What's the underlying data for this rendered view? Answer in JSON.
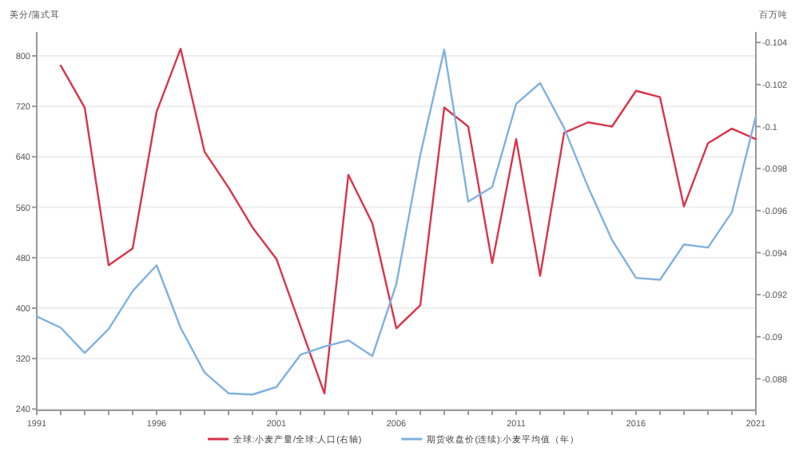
{
  "chart_data": {
    "type": "line",
    "ylabel": "美分/蒲式耳",
    "y2label": "百万吨",
    "legend": "bottom",
    "grid": "y",
    "xlim": [
      1991,
      2021
    ],
    "xticks": [
      1991,
      {
        "value": 1992,
        "label": null
      },
      {
        "value": 1993,
        "label": null
      },
      {
        "value": 1994,
        "label": null
      },
      {
        "value": 1995,
        "label": null
      },
      1996,
      {
        "value": 1997,
        "label": null
      },
      {
        "value": 1998,
        "label": null
      },
      {
        "value": 1999,
        "label": null
      },
      {
        "value": 2000,
        "label": null
      },
      2001,
      {
        "value": 2002,
        "label": null
      },
      {
        "value": 2003,
        "label": null
      },
      {
        "value": 2004,
        "label": null
      },
      {
        "value": 2005,
        "label": null
      },
      2006,
      {
        "value": 2007,
        "label": null
      },
      {
        "value": 2008,
        "label": null
      },
      {
        "value": 2009,
        "label": null
      },
      {
        "value": 2010,
        "label": null
      },
      2011,
      {
        "value": 2012,
        "label": null
      },
      {
        "value": 2013,
        "label": null
      },
      {
        "value": 2014,
        "label": null
      },
      {
        "value": 2015,
        "label": null
      },
      2016,
      {
        "value": 2017,
        "label": null
      },
      {
        "value": 2018,
        "label": null
      },
      {
        "value": 2019,
        "label": null
      },
      {
        "value": 2020,
        "label": null
      },
      2021
    ],
    "ylim": [
      238,
      838
    ],
    "yticks": [
      240,
      320,
      400,
      480,
      560,
      640,
      720,
      800
    ],
    "y2lim": [
      -0.0865,
      -0.1045
    ],
    "y2ticks": [
      -0.104,
      -0.102,
      -0.1,
      -0.098,
      -0.096,
      -0.094,
      -0.092,
      -0.09,
      -0.088
    ],
    "series": [
      {
        "name": "全球:小麦产量/全球:人口(右轴)",
        "color": "#d9344a",
        "axis": "y2",
        "x": [
          1992,
          1993,
          1994,
          1995,
          1996,
          1997,
          1998,
          1999,
          2000,
          2001,
          2002,
          2003,
          2004,
          2005,
          2006,
          2007,
          2008,
          2009,
          2010,
          2011,
          2012,
          2013,
          2014,
          2015,
          2016,
          2017,
          2018,
          2019,
          2020,
          2021
        ],
        "values": [
          -0.1029,
          -0.1009,
          -0.0934,
          -0.0942,
          -0.1007,
          -0.1037,
          -0.0988,
          -0.0971,
          -0.0952,
          -0.0937,
          -0.0905,
          -0.0873,
          -0.0977,
          -0.0954,
          -0.0904,
          -0.0915,
          -0.1009,
          -0.1,
          -0.0935,
          -0.0994,
          -0.0929,
          -0.0997,
          -0.1002,
          -0.1,
          -0.1017,
          -0.1014,
          -0.0962,
          -0.0992,
          -0.0999,
          -0.0994
        ]
      },
      {
        "name": "期货收盘价(连续):小麦平均值（年）",
        "color": "#80b1e0",
        "x": [
          1991,
          1992,
          1993,
          1994,
          1995,
          1996,
          1997,
          1998,
          1999,
          2000,
          2001,
          2002,
          2003,
          2004,
          2005,
          2006,
          2007,
          2008,
          2009,
          2010,
          2011,
          2012,
          2013,
          2014,
          2015,
          2016,
          2017,
          2018,
          2019,
          2020,
          2021
        ],
        "values": [
          387,
          369,
          329,
          367,
          427,
          468,
          369,
          298,
          265,
          263,
          275,
          326,
          339,
          349,
          324,
          438,
          643,
          810,
          569,
          592,
          724,
          757,
          686,
          592,
          508,
          448,
          445,
          501,
          496,
          552,
          704
        ]
      }
    ]
  }
}
